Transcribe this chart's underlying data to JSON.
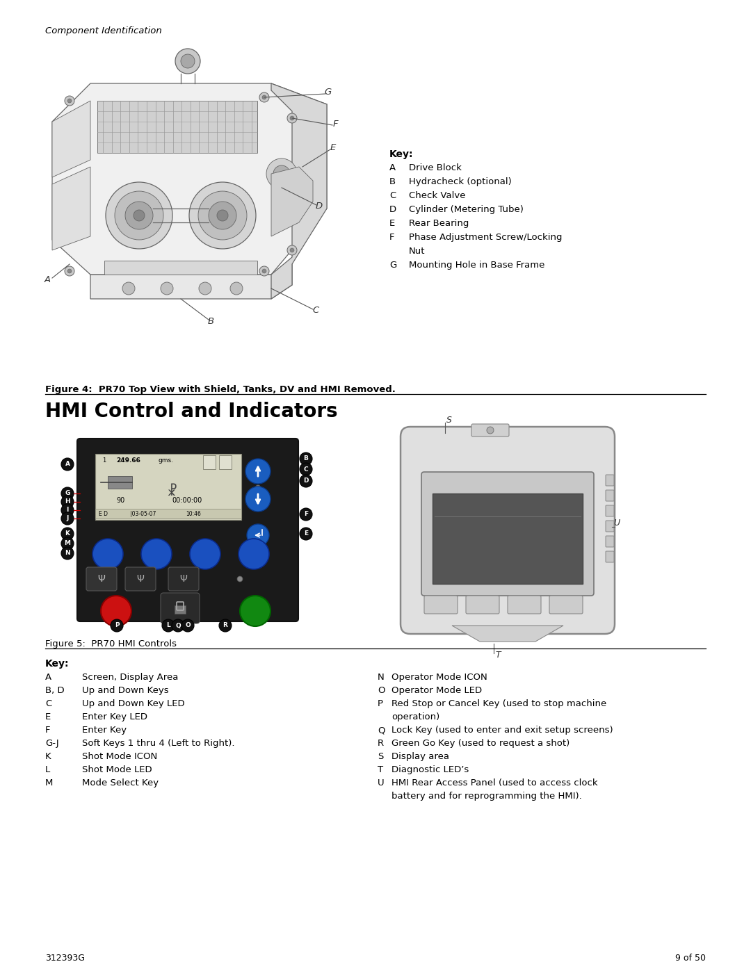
{
  "page_width": 10.8,
  "page_height": 13.97,
  "dpi": 100,
  "bg_color": "#ffffff",
  "header_text": "Component Identification",
  "footer_left": "312393G",
  "footer_right": "9 of 50",
  "figure4_caption": "Figure 4:  PR70 Top View with Shield, Tanks, DV and HMI Removed.",
  "figure5_caption": "Figure 5:  PR70 HMI Controls",
  "hmi_section_title": "HMI Control and Indicators",
  "key1_title": "Key:",
  "key1_items": [
    [
      "A",
      "Drive Block"
    ],
    [
      "B",
      "Hydracheck (optional)"
    ],
    [
      "C",
      "Check Valve"
    ],
    [
      "D",
      "Cylinder (Metering Tube)"
    ],
    [
      "E",
      "Rear Bearing"
    ],
    [
      "F",
      "Phase Adjustment Screw/Locking"
    ],
    [
      "",
      "Nut"
    ],
    [
      "G",
      "Mounting Hole in Base Frame"
    ]
  ],
  "key2_title": "Key:",
  "key2_col1": [
    [
      "A",
      "Screen, Display Area"
    ],
    [
      "B, D",
      "Up and Down Keys"
    ],
    [
      "C",
      "Up and Down Key LED"
    ],
    [
      "E",
      "Enter Key LED"
    ],
    [
      "F",
      "Enter Key"
    ],
    [
      "G-J",
      "Soft Keys 1 thru 4 (Left to Right)."
    ],
    [
      "K",
      "Shot Mode ICON"
    ],
    [
      "L",
      "Shot Mode LED"
    ],
    [
      "M",
      "Mode Select Key"
    ]
  ],
  "key2_col2": [
    [
      "N",
      "Operator Mode ICON"
    ],
    [
      "O",
      "Operator Mode LED"
    ],
    [
      "P",
      "Red Stop or Cancel Key (used to stop machine"
    ],
    [
      "",
      "operation)"
    ],
    [
      "Q",
      "Lock Key (used to enter and exit setup screens)"
    ],
    [
      "R",
      "Green Go Key (used to request a shot)"
    ],
    [
      "S",
      "Display area"
    ],
    [
      "T",
      "Diagnostic LED’s"
    ],
    [
      "U",
      "HMI Rear Access Panel (used to access clock"
    ],
    [
      "",
      "battery and for reprogramming the HMI)."
    ]
  ]
}
